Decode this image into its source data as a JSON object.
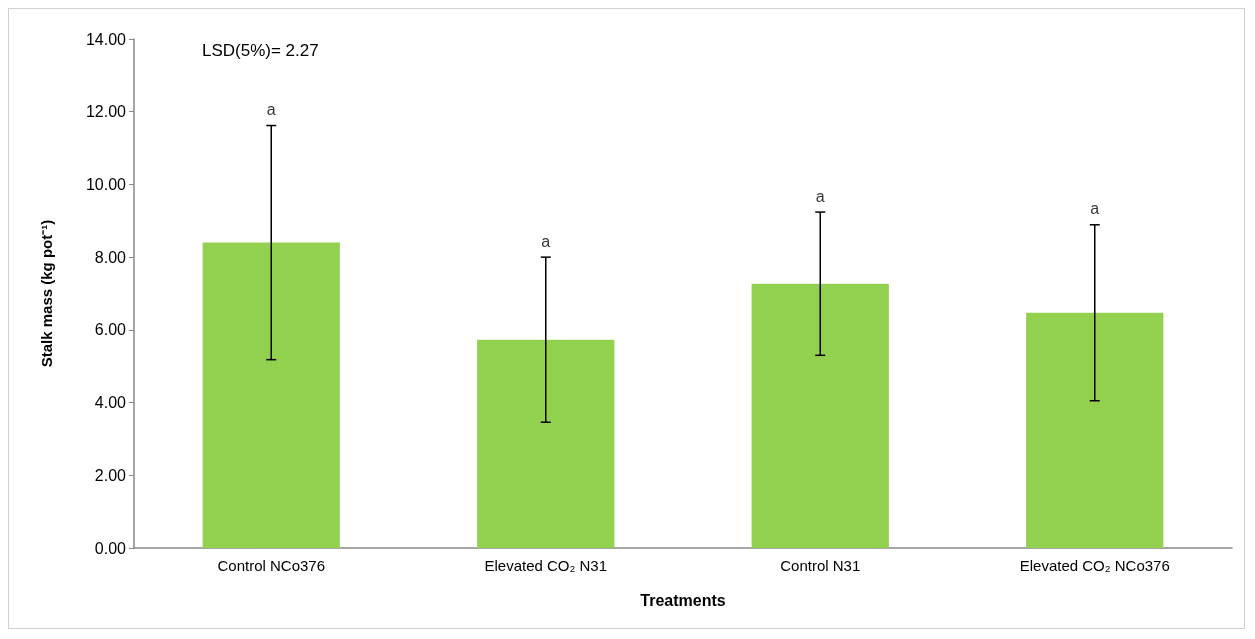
{
  "chart_data": {
    "type": "bar",
    "xlabel": "Treatments",
    "ylabel": "Stalk mass (kg pot⁻¹)",
    "categories": [
      "Control NCo376",
      "Elevated CO₂ N31",
      "Control N31",
      "Elevated CO₂ NCo376"
    ],
    "values": [
      8.4,
      5.73,
      7.27,
      6.47
    ],
    "errors": [
      3.22,
      2.27,
      1.97,
      2.42
    ],
    "color": "#92d050",
    "ylim": [
      0,
      14
    ],
    "yticks": [
      {
        "value": 0,
        "label": "0.00"
      },
      {
        "value": 2,
        "label": "2.00"
      },
      {
        "value": 4,
        "label": "4.00"
      },
      {
        "value": 6,
        "label": "6.00"
      },
      {
        "value": 8,
        "label": "8.00"
      },
      {
        "value": 10,
        "label": "10.00"
      },
      {
        "value": 12,
        "label": "12.00"
      },
      {
        "value": 14,
        "label": "14.00"
      }
    ],
    "grid": false,
    "annotations": [
      "LSD(5%)= 2.27",
      {
        "text": "a",
        "x": "Control NCo376",
        "y": 11.62
      },
      {
        "text": "a",
        "x": "Elevated CO₂ N31",
        "y": 8.0
      },
      {
        "text": "a",
        "x": "Control N31",
        "y": 9.24
      },
      {
        "text": "a",
        "x": "Elevated CO₂ NCo376",
        "y": 8.89
      }
    ]
  }
}
